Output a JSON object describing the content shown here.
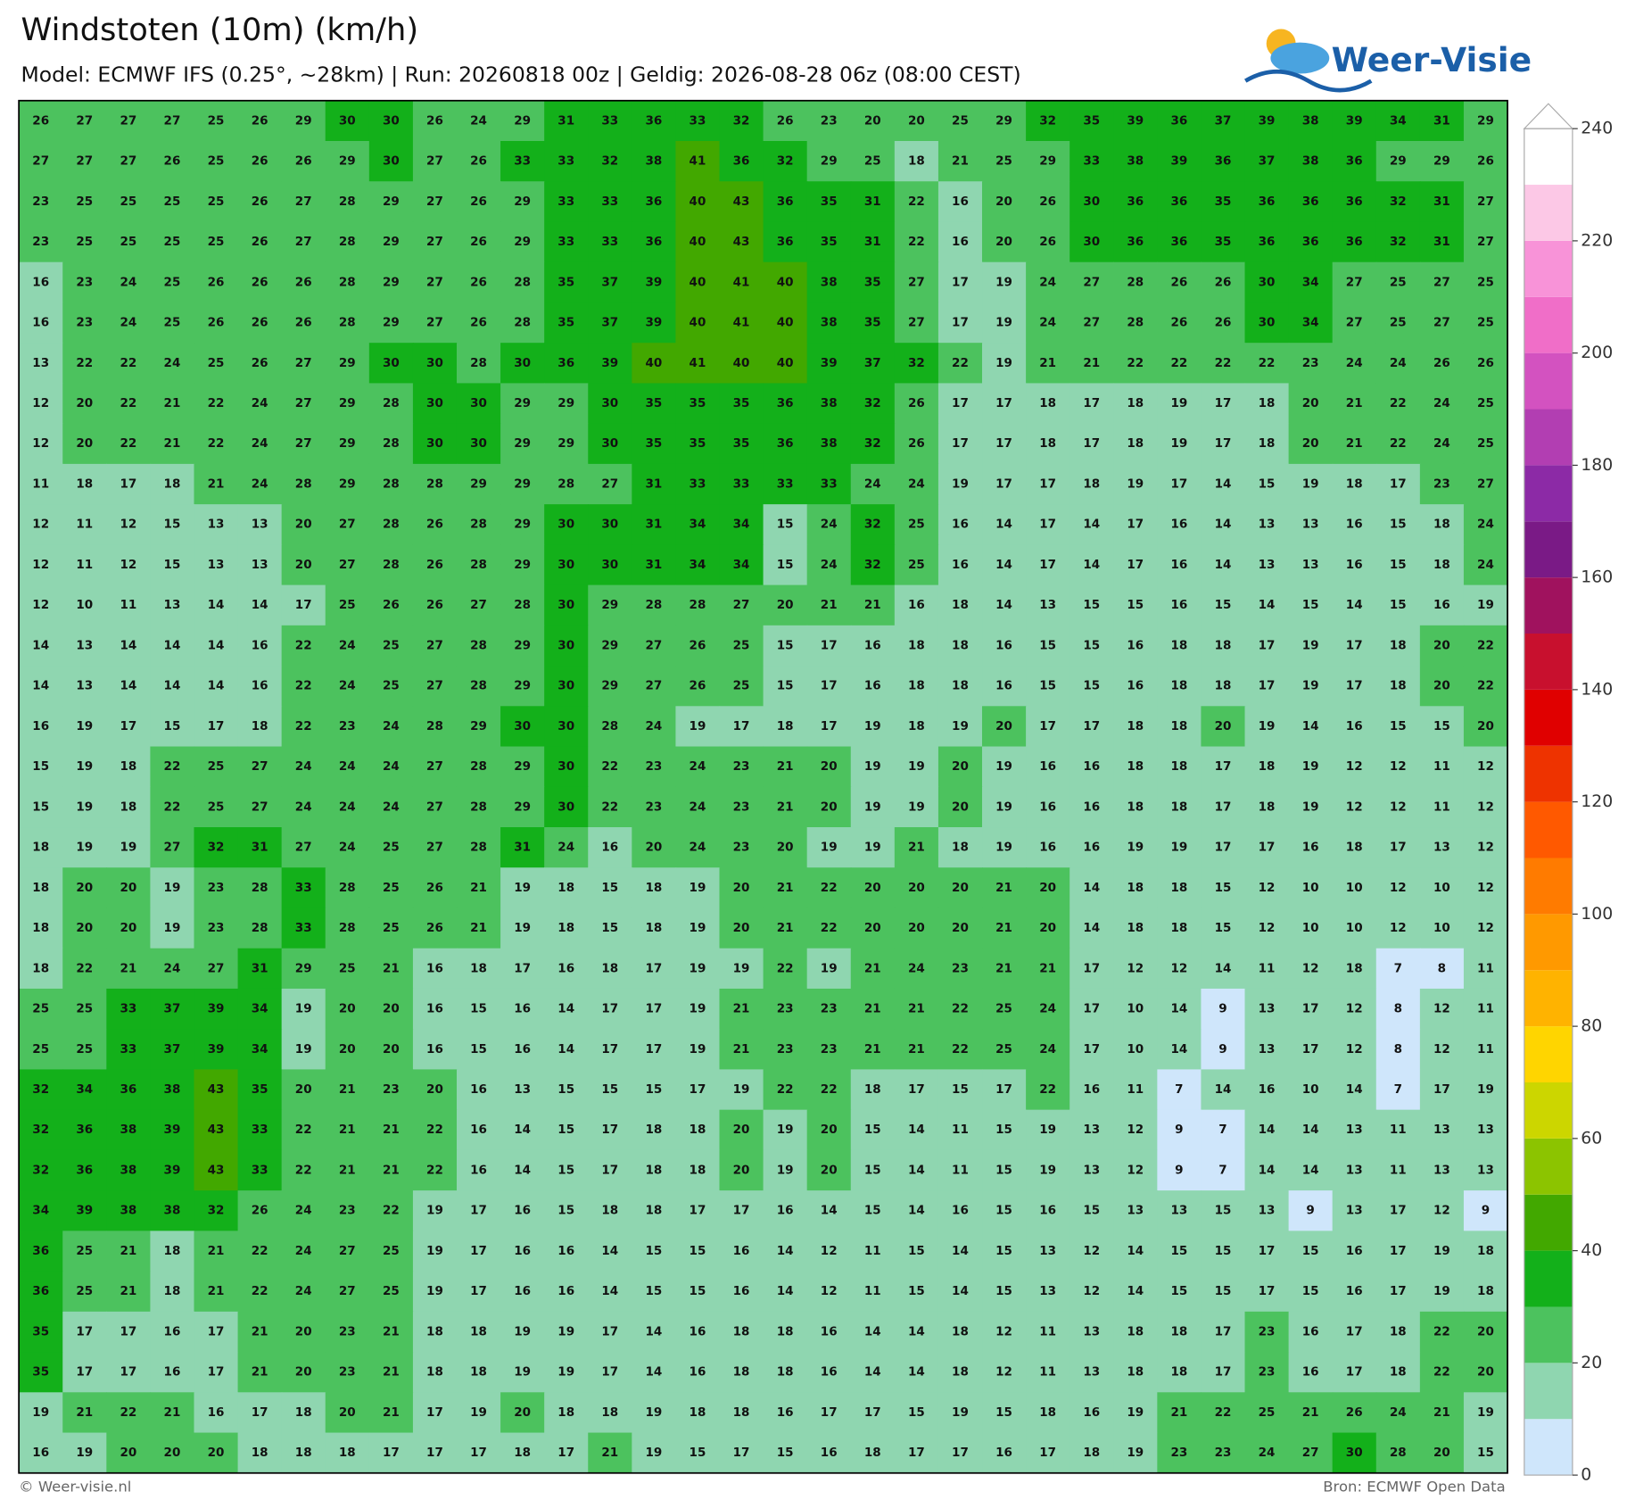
{
  "header": {
    "title": "Windstoten (10m) (km/h)",
    "subtitle": "Model: ECMWF IFS (0.25°, ~28km)  |  Run: 20260818 00z  |  Geldig: 2026-08-28 06z (08:00 CEST)"
  },
  "logo": {
    "text": "Weer-Visie"
  },
  "footer": {
    "left": "© Weer-visie.nl",
    "right": "Bron: ECMWF Open Data"
  },
  "colorbar": {
    "bounds": [
      0,
      10,
      20,
      30,
      40,
      50,
      60,
      70,
      80,
      90,
      100,
      110,
      120,
      130,
      140,
      150,
      160,
      170,
      180,
      190,
      200,
      210,
      220,
      230,
      240
    ],
    "colors": [
      "#cfe6fb",
      "#8fd6b0",
      "#4cc25e",
      "#13b01a",
      "#42a800",
      "#8cc400",
      "#ccd600",
      "#ffd500",
      "#ffb300",
      "#ff9900",
      "#ff7b00",
      "#ff5900",
      "#ee3300",
      "#e00000",
      "#c8102e",
      "#a0125e",
      "#7a1a86",
      "#8c2aa6",
      "#b23eb2",
      "#d352c0",
      "#f06ec8",
      "#f893d8",
      "#fcc8e6",
      "#ffffff"
    ],
    "ticks": [
      0,
      20,
      40,
      60,
      80,
      100,
      120,
      140,
      160,
      180,
      200,
      220,
      240
    ]
  },
  "grid": {
    "rows": [
      [
        26,
        27,
        27,
        27,
        25,
        26,
        29,
        30,
        30,
        26,
        24,
        29,
        31,
        33,
        36,
        33,
        32,
        26,
        23,
        20,
        20,
        25,
        29,
        32,
        35,
        39,
        36,
        37,
        39,
        38,
        39,
        34,
        31,
        29
      ],
      [
        27,
        27,
        27,
        26,
        25,
        26,
        26,
        29,
        30,
        27,
        26,
        33,
        33,
        32,
        38,
        41,
        36,
        32,
        29,
        25,
        18,
        21,
        25,
        29,
        33,
        38,
        39,
        36,
        37,
        38,
        36,
        29,
        29,
        26
      ],
      [
        23,
        25,
        25,
        25,
        25,
        26,
        27,
        28,
        29,
        27,
        26,
        29,
        33,
        33,
        36,
        40,
        43,
        36,
        35,
        31,
        22,
        16,
        20,
        26,
        30,
        36,
        36,
        35,
        36,
        36,
        36,
        32,
        31,
        27
      ],
      [
        23,
        25,
        25,
        25,
        25,
        26,
        27,
        28,
        29,
        27,
        26,
        29,
        33,
        33,
        36,
        40,
        43,
        36,
        35,
        31,
        22,
        16,
        20,
        26,
        30,
        36,
        36,
        35,
        36,
        36,
        36,
        32,
        31,
        27
      ],
      [
        16,
        23,
        24,
        25,
        26,
        26,
        26,
        28,
        29,
        27,
        26,
        28,
        35,
        37,
        39,
        40,
        41,
        40,
        38,
        35,
        27,
        17,
        19,
        24,
        27,
        28,
        26,
        26,
        30,
        34,
        27,
        25,
        27,
        25
      ],
      [
        16,
        23,
        24,
        25,
        26,
        26,
        26,
        28,
        29,
        27,
        26,
        28,
        35,
        37,
        39,
        40,
        41,
        40,
        38,
        35,
        27,
        17,
        19,
        24,
        27,
        28,
        26,
        26,
        30,
        34,
        27,
        25,
        27,
        25
      ],
      [
        13,
        22,
        22,
        24,
        25,
        26,
        27,
        29,
        30,
        30,
        28,
        30,
        36,
        39,
        40,
        41,
        40,
        40,
        39,
        37,
        32,
        22,
        19,
        21,
        21,
        22,
        22,
        22,
        22,
        23,
        24,
        24,
        26,
        26
      ],
      [
        12,
        20,
        22,
        21,
        22,
        24,
        27,
        29,
        28,
        30,
        30,
        29,
        29,
        30,
        35,
        35,
        35,
        36,
        38,
        32,
        26,
        17,
        17,
        18,
        17,
        18,
        19,
        17,
        18,
        20,
        21,
        22,
        24,
        25
      ],
      [
        12,
        20,
        22,
        21,
        22,
        24,
        27,
        29,
        28,
        30,
        30,
        29,
        29,
        30,
        35,
        35,
        35,
        36,
        38,
        32,
        26,
        17,
        17,
        18,
        17,
        18,
        19,
        17,
        18,
        20,
        21,
        22,
        24,
        25
      ],
      [
        11,
        18,
        17,
        18,
        21,
        24,
        28,
        29,
        28,
        28,
        29,
        29,
        28,
        27,
        31,
        33,
        33,
        33,
        33,
        24,
        24,
        19,
        17,
        17,
        18,
        19,
        17,
        14,
        15,
        19,
        18,
        17,
        23,
        27
      ],
      [
        12,
        11,
        12,
        15,
        13,
        13,
        20,
        27,
        28,
        26,
        28,
        29,
        30,
        30,
        31,
        34,
        34,
        15,
        24,
        32,
        25,
        16,
        14,
        17,
        14,
        17,
        16,
        14,
        13,
        13,
        16,
        15,
        18,
        24
      ],
      [
        12,
        11,
        12,
        15,
        13,
        13,
        20,
        27,
        28,
        26,
        28,
        29,
        30,
        30,
        31,
        34,
        34,
        15,
        24,
        32,
        25,
        16,
        14,
        17,
        14,
        17,
        16,
        14,
        13,
        13,
        16,
        15,
        18,
        24
      ],
      [
        12,
        10,
        11,
        13,
        14,
        14,
        17,
        25,
        26,
        26,
        27,
        28,
        30,
        29,
        28,
        28,
        27,
        20,
        21,
        21,
        16,
        18,
        14,
        13,
        15,
        15,
        16,
        15,
        14,
        15,
        14,
        15,
        16,
        19
      ],
      [
        14,
        13,
        14,
        14,
        14,
        16,
        22,
        24,
        25,
        27,
        28,
        29,
        30,
        29,
        27,
        26,
        25,
        15,
        17,
        16,
        18,
        18,
        16,
        15,
        15,
        16,
        18,
        18,
        17,
        19,
        17,
        18,
        20,
        22
      ],
      [
        14,
        13,
        14,
        14,
        14,
        16,
        22,
        24,
        25,
        27,
        28,
        29,
        30,
        29,
        27,
        26,
        25,
        15,
        17,
        16,
        18,
        18,
        16,
        15,
        15,
        16,
        18,
        18,
        17,
        19,
        17,
        18,
        20,
        22
      ],
      [
        16,
        19,
        17,
        15,
        17,
        18,
        22,
        23,
        24,
        28,
        29,
        30,
        30,
        28,
        24,
        19,
        17,
        18,
        17,
        19,
        18,
        19,
        20,
        17,
        17,
        18,
        18,
        20,
        19,
        14,
        16,
        15,
        15,
        20
      ],
      [
        15,
        19,
        18,
        22,
        25,
        27,
        24,
        24,
        24,
        27,
        28,
        29,
        30,
        22,
        23,
        24,
        23,
        21,
        20,
        19,
        19,
        20,
        19,
        16,
        16,
        18,
        18,
        17,
        18,
        19,
        12,
        12,
        11,
        12
      ],
      [
        15,
        19,
        18,
        22,
        25,
        27,
        24,
        24,
        24,
        27,
        28,
        29,
        30,
        22,
        23,
        24,
        23,
        21,
        20,
        19,
        19,
        20,
        19,
        16,
        16,
        18,
        18,
        17,
        18,
        19,
        12,
        12,
        11,
        12
      ],
      [
        18,
        19,
        19,
        27,
        32,
        31,
        27,
        24,
        25,
        27,
        28,
        31,
        24,
        16,
        20,
        24,
        23,
        20,
        19,
        19,
        21,
        18,
        19,
        16,
        16,
        19,
        19,
        17,
        17,
        16,
        18,
        17,
        13,
        12
      ],
      [
        18,
        20,
        20,
        19,
        23,
        28,
        33,
        28,
        25,
        26,
        21,
        19,
        18,
        15,
        18,
        19,
        20,
        21,
        22,
        20,
        20,
        20,
        21,
        20,
        14,
        18,
        18,
        15,
        12,
        10,
        10,
        12,
        10,
        12
      ],
      [
        18,
        20,
        20,
        19,
        23,
        28,
        33,
        28,
        25,
        26,
        21,
        19,
        18,
        15,
        18,
        19,
        20,
        21,
        22,
        20,
        20,
        20,
        21,
        20,
        14,
        18,
        18,
        15,
        12,
        10,
        10,
        12,
        10,
        12
      ],
      [
        18,
        22,
        21,
        24,
        27,
        31,
        29,
        25,
        21,
        16,
        18,
        17,
        16,
        18,
        17,
        19,
        19,
        22,
        19,
        21,
        24,
        23,
        21,
        21,
        17,
        12,
        12,
        14,
        11,
        12,
        18,
        7,
        8,
        11
      ],
      [
        25,
        25,
        33,
        37,
        39,
        34,
        19,
        20,
        20,
        16,
        15,
        16,
        14,
        17,
        17,
        19,
        21,
        23,
        23,
        21,
        21,
        22,
        25,
        24,
        17,
        10,
        14,
        9,
        13,
        17,
        12,
        8,
        12,
        11
      ],
      [
        25,
        25,
        33,
        37,
        39,
        34,
        19,
        20,
        20,
        16,
        15,
        16,
        14,
        17,
        17,
        19,
        21,
        23,
        23,
        21,
        21,
        22,
        25,
        24,
        17,
        10,
        14,
        9,
        13,
        17,
        12,
        8,
        12,
        11
      ],
      [
        32,
        34,
        36,
        38,
        43,
        35,
        20,
        21,
        23,
        20,
        16,
        13,
        15,
        15,
        15,
        17,
        19,
        22,
        22,
        18,
        17,
        15,
        17,
        22,
        16,
        11,
        7,
        14,
        16,
        10,
        14,
        7,
        17,
        19
      ],
      [
        32,
        36,
        38,
        39,
        43,
        33,
        22,
        21,
        21,
        22,
        16,
        14,
        15,
        17,
        18,
        18,
        20,
        19,
        20,
        15,
        14,
        11,
        15,
        19,
        13,
        12,
        9,
        7,
        14,
        14,
        13,
        11,
        13,
        13
      ],
      [
        32,
        36,
        38,
        39,
        43,
        33,
        22,
        21,
        21,
        22,
        16,
        14,
        15,
        17,
        18,
        18,
        20,
        19,
        20,
        15,
        14,
        11,
        15,
        19,
        13,
        12,
        9,
        7,
        14,
        14,
        13,
        11,
        13,
        13
      ],
      [
        34,
        39,
        38,
        38,
        32,
        26,
        24,
        23,
        22,
        19,
        17,
        16,
        15,
        18,
        18,
        17,
        17,
        16,
        14,
        15,
        14,
        16,
        15,
        16,
        15,
        13,
        13,
        15,
        13,
        9,
        13,
        17,
        12,
        9
      ],
      [
        36,
        25,
        21,
        18,
        21,
        22,
        24,
        27,
        25,
        19,
        17,
        16,
        16,
        14,
        15,
        15,
        16,
        14,
        12,
        11,
        15,
        14,
        15,
        13,
        12,
        14,
        15,
        15,
        17,
        15,
        16,
        17,
        19,
        18
      ],
      [
        36,
        25,
        21,
        18,
        21,
        22,
        24,
        27,
        25,
        19,
        17,
        16,
        16,
        14,
        15,
        15,
        16,
        14,
        12,
        11,
        15,
        14,
        15,
        13,
        12,
        14,
        15,
        15,
        17,
        15,
        16,
        17,
        19,
        18
      ],
      [
        35,
        17,
        17,
        16,
        17,
        21,
        20,
        23,
        21,
        18,
        18,
        19,
        19,
        17,
        14,
        16,
        18,
        18,
        16,
        14,
        14,
        18,
        12,
        11,
        13,
        18,
        18,
        17,
        23,
        16,
        17,
        18,
        22,
        20
      ],
      [
        35,
        17,
        17,
        16,
        17,
        21,
        20,
        23,
        21,
        18,
        18,
        19,
        19,
        17,
        14,
        16,
        18,
        18,
        16,
        14,
        14,
        18,
        12,
        11,
        13,
        18,
        18,
        17,
        23,
        16,
        17,
        18,
        22,
        20
      ],
      [
        19,
        21,
        22,
        21,
        16,
        17,
        18,
        20,
        21,
        17,
        19,
        20,
        18,
        18,
        19,
        18,
        18,
        16,
        17,
        17,
        15,
        19,
        15,
        18,
        16,
        19,
        21,
        22,
        25,
        21,
        26,
        24,
        21,
        19
      ],
      [
        16,
        19,
        20,
        20,
        20,
        18,
        18,
        18,
        17,
        17,
        17,
        18,
        17,
        21,
        19,
        15,
        17,
        15,
        16,
        18,
        17,
        17,
        16,
        17,
        18,
        19,
        23,
        23,
        24,
        27,
        30,
        28,
        20,
        15
      ]
    ]
  }
}
